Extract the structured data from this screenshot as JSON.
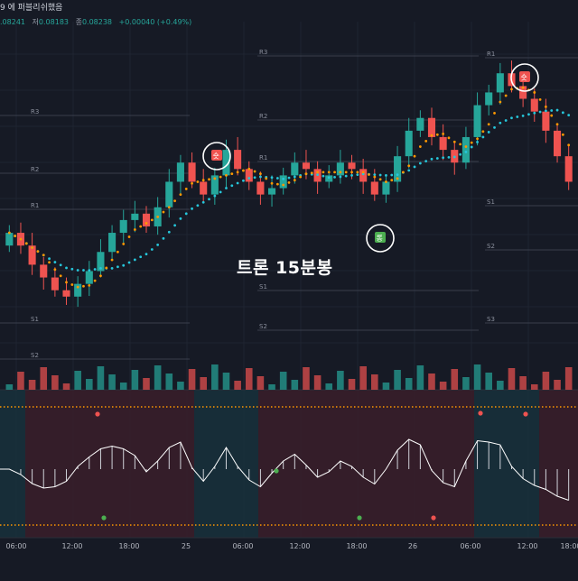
{
  "header": {
    "title": "9 에 퍼블리쉬했음",
    "ohlc": [
      {
        "key": "",
        "value": ".08241"
      },
      {
        "key": "저",
        "value": "0.08183"
      },
      {
        "key": "종",
        "value": "0.08238"
      },
      {
        "key": "",
        "value": "+0.00040 (+0.49%)"
      }
    ]
  },
  "caption": "트론 15분봉",
  "colors": {
    "background": "#161a25",
    "up": "#26a69a",
    "down": "#ef5350",
    "signal_sell": "#ef5350",
    "signal_buy": "#4caf50",
    "ema_fast": "#ff9800",
    "ema_slow": "#26c6da",
    "cloud_orange": "#8a6a20",
    "cloud_teal": "#1f5f73",
    "bg_red": "#3a1f2a",
    "bg_teal": "#17313c"
  },
  "chart_data": {
    "type": "candlestick",
    "symbol_caption": "트론 15분봉",
    "x_ticks": [
      "06:00",
      "12:00",
      "18:00",
      "25",
      "06:00",
      "12:00",
      "18:00",
      "26",
      "06:00",
      "12:00",
      "18:00"
    ],
    "close_series": [
      0.0818,
      0.0816,
      0.0813,
      0.0811,
      0.0809,
      0.0808,
      0.081,
      0.0812,
      0.0815,
      0.0818,
      0.082,
      0.0821,
      0.0819,
      0.0822,
      0.0826,
      0.0829,
      0.0826,
      0.0824,
      0.0827,
      0.0831,
      0.0828,
      0.0826,
      0.0824,
      0.0825,
      0.0827,
      0.0829,
      0.0828,
      0.0826,
      0.0827,
      0.0829,
      0.0828,
      0.0826,
      0.0824,
      0.0826,
      0.083,
      0.0834,
      0.0836,
      0.0833,
      0.0831,
      0.0829,
      0.0833,
      0.0838,
      0.084,
      0.0843,
      0.0841,
      0.0839,
      0.0837,
      0.0834,
      0.083,
      0.0826
    ],
    "pivot_levels_left": [
      "R3",
      "R2",
      "R1",
      "S1",
      "S2"
    ],
    "pivot_levels_mid": [
      "R3",
      "R2",
      "R1",
      "S1",
      "S2"
    ],
    "pivot_levels_right": [
      "R1",
      "S1",
      "S2",
      "S3"
    ],
    "signals": [
      {
        "label": "숏",
        "type": "sell"
      },
      {
        "label": "롱",
        "type": "buy"
      },
      {
        "label": "숏",
        "type": "sell"
      }
    ]
  }
}
